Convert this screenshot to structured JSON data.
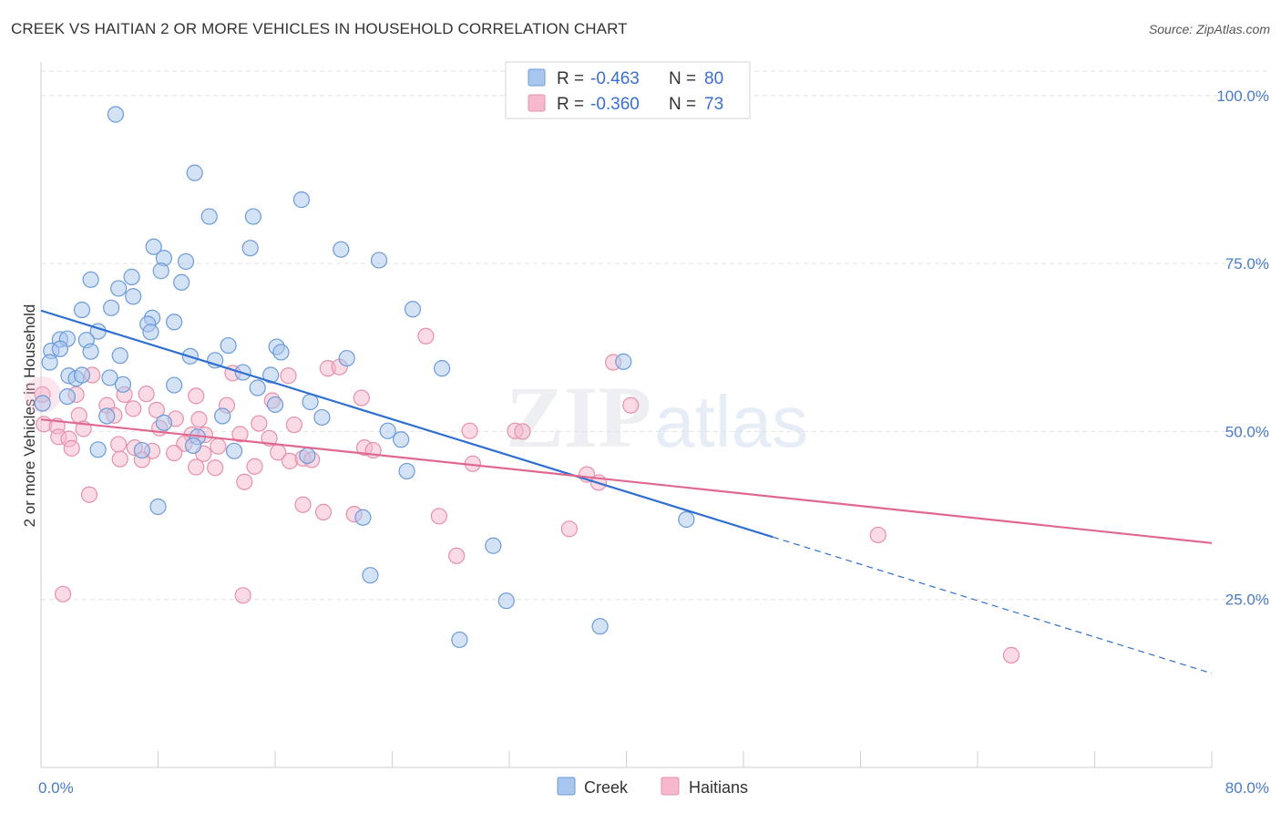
{
  "header": {
    "title": "CREEK VS HAITIAN 2 OR MORE VEHICLES IN HOUSEHOLD CORRELATION CHART",
    "source": "Source: ZipAtlas.com"
  },
  "watermark": {
    "zip": "ZIP",
    "atlas": "atlas"
  },
  "chart_data": {
    "type": "scatter",
    "title": "CREEK VS HAITIAN 2 OR MORE VEHICLES IN HOUSEHOLD CORRELATION CHART",
    "xlabel": "",
    "ylabel": "2 or more Vehicles in Household",
    "xlim": [
      0,
      80
    ],
    "ylim": [
      0,
      105
    ],
    "x_tick_labels": [
      "0.0%",
      "80.0%"
    ],
    "y_ticks": [
      25,
      50,
      75,
      100
    ],
    "y_tick_labels": [
      "25.0%",
      "50.0%",
      "75.0%",
      "100.0%"
    ],
    "grid": true,
    "legend_position": "bottom-center",
    "stats": [
      {
        "r_label": "R =",
        "r_value": "-0.463",
        "n_label": "N =",
        "n_value": "80"
      },
      {
        "r_label": "R =",
        "r_value": "-0.360",
        "n_label": "N =",
        "n_value": "73"
      }
    ],
    "series": [
      {
        "name": "Creek",
        "color": "#a9c6ee",
        "stroke": "#6c9bd8",
        "line_color": "#2f6fcf",
        "trend": {
          "x0": 0,
          "y0": 68,
          "x1": 50,
          "y1": 34.3,
          "dash_to_x": 80,
          "dash_to_y": 14
        },
        "points": [
          [
            5.1,
            97.2
          ],
          [
            10.5,
            88.5
          ],
          [
            11.5,
            82
          ],
          [
            14.5,
            82
          ],
          [
            17.8,
            84.5
          ],
          [
            7.7,
            77.5
          ],
          [
            14.3,
            77.3
          ],
          [
            20.5,
            77.1
          ],
          [
            23.1,
            75.5
          ],
          [
            8.4,
            75.8
          ],
          [
            9.9,
            75.3
          ],
          [
            8.2,
            73.9
          ],
          [
            3.4,
            72.6
          ],
          [
            6.2,
            73
          ],
          [
            9.6,
            72.2
          ],
          [
            5.3,
            71.3
          ],
          [
            6.3,
            70.1
          ],
          [
            2.8,
            68.1
          ],
          [
            4.8,
            68.4
          ],
          [
            7.6,
            66.9
          ],
          [
            7.3,
            66
          ],
          [
            9.1,
            66.3
          ],
          [
            25.4,
            68.2
          ],
          [
            3.9,
            64.9
          ],
          [
            7.5,
            64.8
          ],
          [
            0.7,
            62
          ],
          [
            1.3,
            63.7
          ],
          [
            1.8,
            63.8
          ],
          [
            3.1,
            63.6
          ],
          [
            1.3,
            62.3
          ],
          [
            3.4,
            61.9
          ],
          [
            5.4,
            61.3
          ],
          [
            10.2,
            61.2
          ],
          [
            11.9,
            60.6
          ],
          [
            12.8,
            62.8
          ],
          [
            16.1,
            62.6
          ],
          [
            16.4,
            61.8
          ],
          [
            20.9,
            60.9
          ],
          [
            0.6,
            60.3
          ],
          [
            1.9,
            58.3
          ],
          [
            2.4,
            57.9
          ],
          [
            2.8,
            58.4
          ],
          [
            4.7,
            58
          ],
          [
            13.8,
            58.8
          ],
          [
            15.7,
            58.4
          ],
          [
            27.4,
            59.4
          ],
          [
            39.8,
            60.4
          ],
          [
            5.6,
            57
          ],
          [
            9.1,
            56.9
          ],
          [
            14.8,
            56.5
          ],
          [
            1.8,
            55.2
          ],
          [
            0.1,
            54.2
          ],
          [
            16,
            54
          ],
          [
            18.4,
            54.4
          ],
          [
            4.5,
            52.3
          ],
          [
            12.4,
            52.3
          ],
          [
            19.2,
            52.1
          ],
          [
            8.4,
            51.3
          ],
          [
            23.7,
            50.1
          ],
          [
            10.7,
            49.2
          ],
          [
            24.6,
            48.8
          ],
          [
            10.4,
            47.9
          ],
          [
            13.2,
            47.1
          ],
          [
            3.9,
            47.3
          ],
          [
            6.9,
            47.2
          ],
          [
            18.2,
            46.4
          ],
          [
            25,
            44.1
          ],
          [
            8,
            38.8
          ],
          [
            22,
            37.2
          ],
          [
            44.1,
            36.9
          ],
          [
            22.5,
            28.6
          ],
          [
            30.9,
            33
          ],
          [
            31.8,
            24.8
          ],
          [
            28.6,
            19
          ],
          [
            38.2,
            21
          ]
        ]
      },
      {
        "name": "Haitians",
        "color": "#f6b8cc",
        "stroke": "#e690ac",
        "line_color": "#e06890",
        "trend": {
          "x0": 0,
          "y0": 51.8,
          "x1": 80,
          "y1": 33.4
        },
        "points": [
          [
            0.1,
            55.5
          ],
          [
            26.3,
            64.2
          ],
          [
            39.1,
            60.3
          ],
          [
            19.6,
            59.4
          ],
          [
            20.4,
            59.6
          ],
          [
            13.1,
            58.7
          ],
          [
            16.9,
            58.3
          ],
          [
            3.5,
            58.4
          ],
          [
            2.4,
            55.5
          ],
          [
            5.7,
            55.5
          ],
          [
            7.2,
            55.6
          ],
          [
            10.6,
            55.3
          ],
          [
            21.9,
            55
          ],
          [
            15.8,
            54.6
          ],
          [
            12.7,
            53.9
          ],
          [
            4.5,
            53.9
          ],
          [
            6.3,
            53.4
          ],
          [
            7.9,
            53.2
          ],
          [
            2.6,
            52.4
          ],
          [
            5,
            52.4
          ],
          [
            0.2,
            51.1
          ],
          [
            1.1,
            50.8
          ],
          [
            9.2,
            51.9
          ],
          [
            10.8,
            51.8
          ],
          [
            14.9,
            51.2
          ],
          [
            17.3,
            51
          ],
          [
            2.9,
            50.4
          ],
          [
            8.1,
            50.5
          ],
          [
            29.3,
            50.1
          ],
          [
            32.4,
            50.1
          ],
          [
            32.9,
            50
          ],
          [
            40.3,
            53.9
          ],
          [
            10.3,
            49.5
          ],
          [
            11.2,
            49.5
          ],
          [
            13.6,
            49.6
          ],
          [
            15.6,
            49
          ],
          [
            1.2,
            49.2
          ],
          [
            1.9,
            48.9
          ],
          [
            5.3,
            48.1
          ],
          [
            9.8,
            48.2
          ],
          [
            12.1,
            47.8
          ],
          [
            2.1,
            47.5
          ],
          [
            6.4,
            47.6
          ],
          [
            7.6,
            47.1
          ],
          [
            9.1,
            46.8
          ],
          [
            11.1,
            46.7
          ],
          [
            16.2,
            46.9
          ],
          [
            22.1,
            47.6
          ],
          [
            22.7,
            47.2
          ],
          [
            5.4,
            45.9
          ],
          [
            6.9,
            45.8
          ],
          [
            17,
            45.6
          ],
          [
            17.9,
            46
          ],
          [
            18.5,
            45.8
          ],
          [
            10.6,
            44.7
          ],
          [
            11.9,
            44.6
          ],
          [
            14.6,
            44.8
          ],
          [
            29.5,
            45.2
          ],
          [
            37.3,
            43.6
          ],
          [
            13.9,
            42.5
          ],
          [
            38.1,
            42.4
          ],
          [
            3.3,
            40.6
          ],
          [
            17.9,
            39.1
          ],
          [
            19.3,
            38
          ],
          [
            21.4,
            37.7
          ],
          [
            27.2,
            37.4
          ],
          [
            36.1,
            35.5
          ],
          [
            57.2,
            34.6
          ],
          [
            28.4,
            31.5
          ],
          [
            1.5,
            25.8
          ],
          [
            13.8,
            25.6
          ],
          [
            66.3,
            16.7
          ]
        ]
      }
    ]
  },
  "legend": [
    {
      "label": "Creek"
    },
    {
      "label": "Haitians"
    }
  ]
}
